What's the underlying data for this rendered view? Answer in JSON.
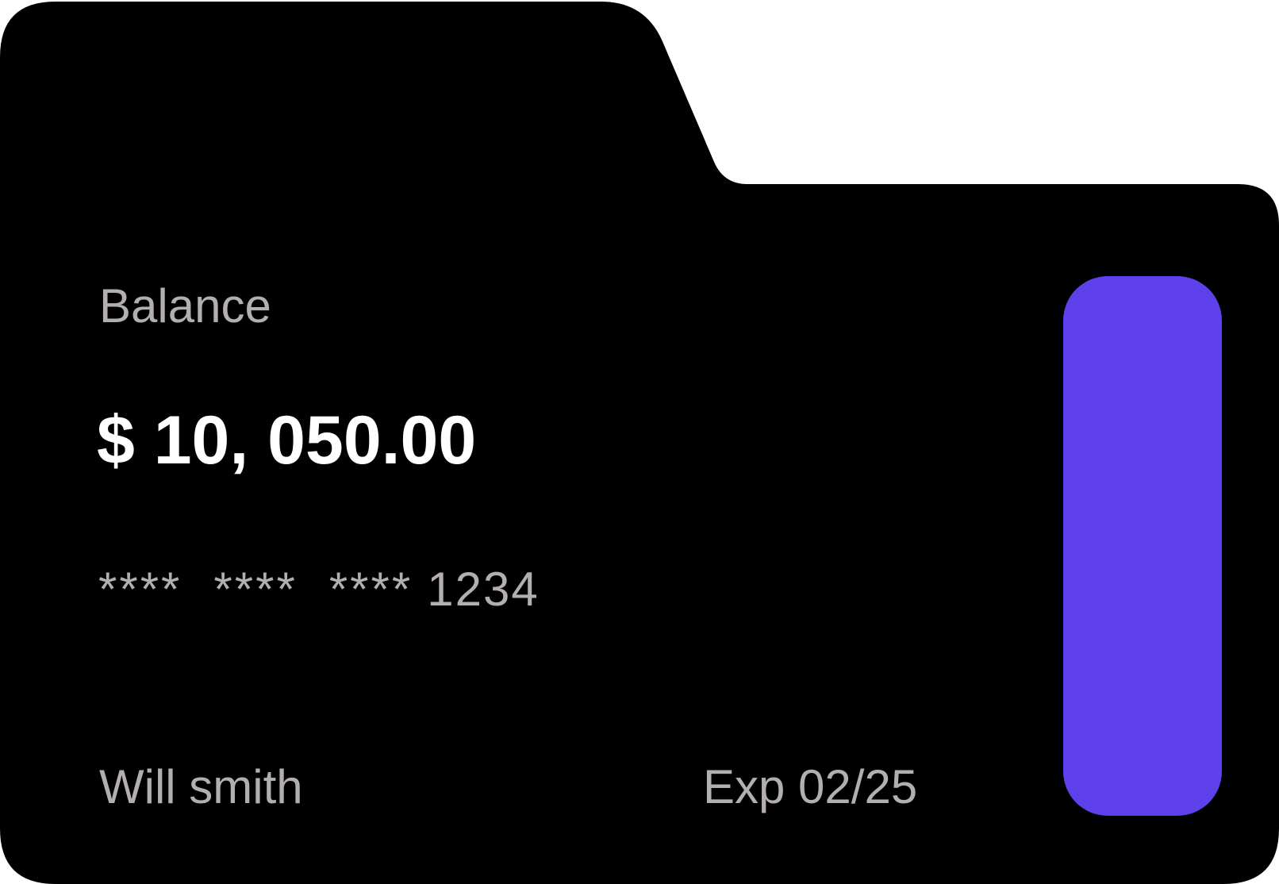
{
  "card": {
    "balance_label": "Balance",
    "balance_amount": "$ 10, 050.00",
    "number_masked_groups": [
      "****",
      "****",
      "****"
    ],
    "number_last4": "1234",
    "holder_name": "Will smith",
    "expiry": "Exp 02/25"
  },
  "colors": {
    "card_background": "#000000",
    "page_background": "#ffffff",
    "label_text": "#b3aeb0",
    "amount_text": "#ffffff",
    "accent": "#5f41eb"
  }
}
